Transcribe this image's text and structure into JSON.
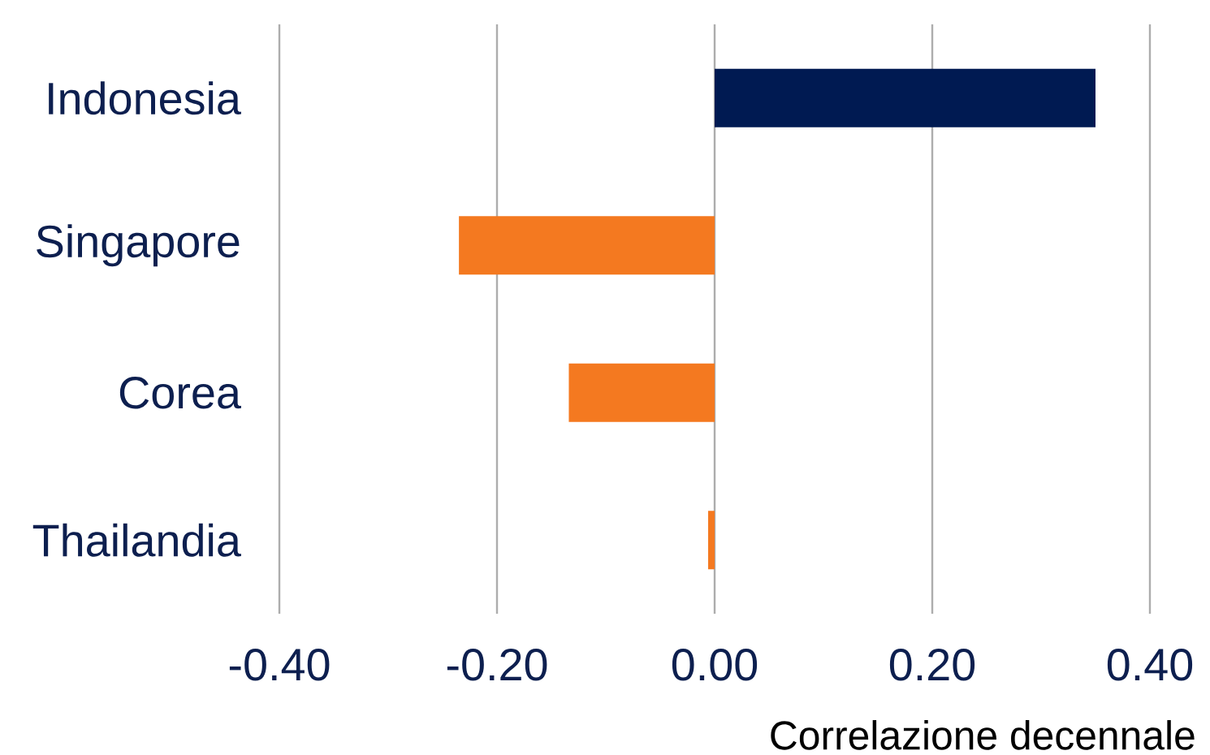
{
  "chart_data": {
    "type": "bar",
    "orientation": "horizontal",
    "categories": [
      "Indonesia",
      "Singapore",
      "Corea",
      "Thailandia"
    ],
    "values": [
      0.35,
      -0.235,
      -0.134,
      -0.006
    ],
    "colors": [
      "#001a52",
      "#f47920",
      "#f47920",
      "#f47920"
    ],
    "xlabel": "Correlazione decennale",
    "xlim": [
      -0.4,
      0.4
    ],
    "xticks": [
      {
        "value": -0.4,
        "label": "-0.40"
      },
      {
        "value": -0.2,
        "label": "-0.20"
      },
      {
        "value": 0,
        "label": "0.00"
      },
      {
        "value": 0.2,
        "label": "0.20"
      },
      {
        "value": 0.4,
        "label": "0.40"
      }
    ],
    "grid": "x"
  }
}
